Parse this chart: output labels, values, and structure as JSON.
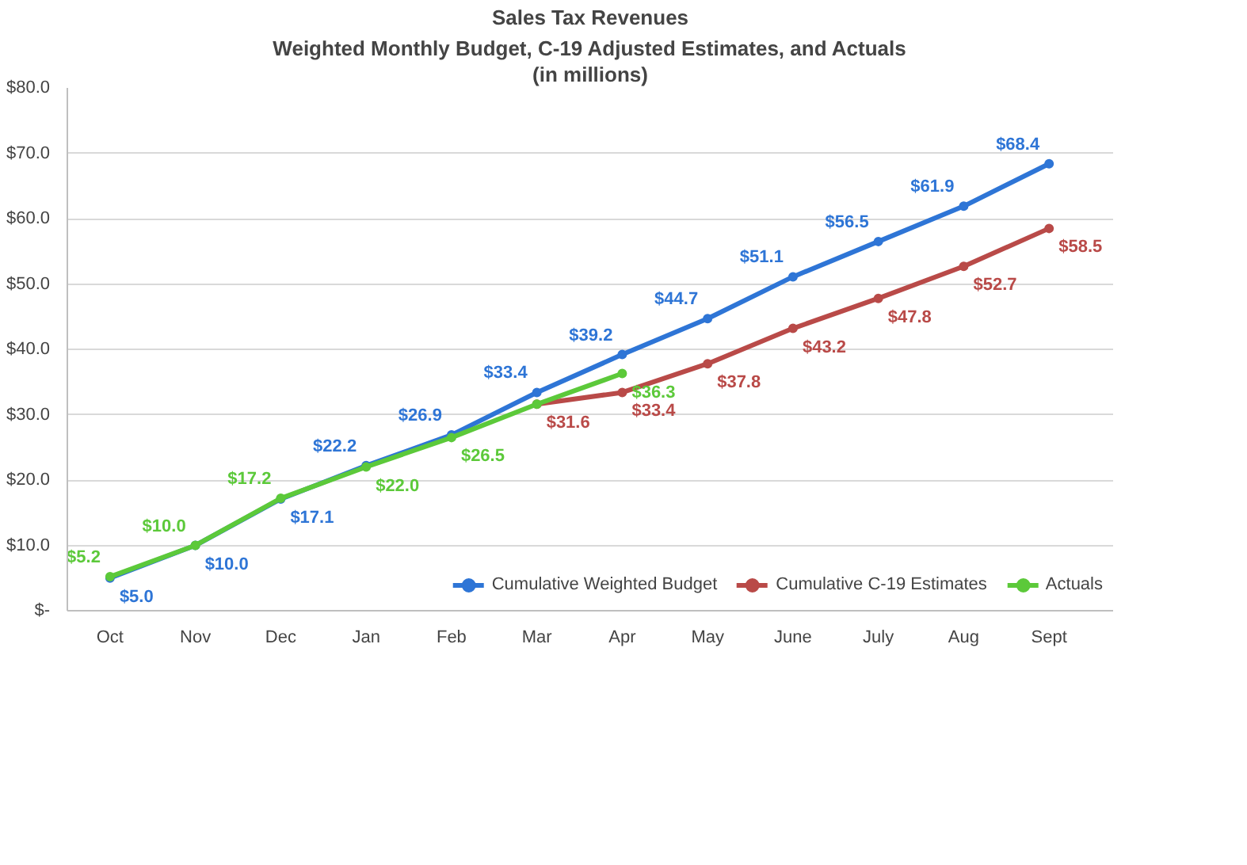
{
  "chart_data": {
    "type": "line",
    "title": "Sales Tax Revenues",
    "subtitle": "Weighted Monthly Budget, C-19 Adjusted Estimates, and Actuals\n(in millions)",
    "categories": [
      "Oct",
      "Nov",
      "Dec",
      "Jan",
      "Feb",
      "Mar",
      "Apr",
      "May",
      "June",
      "July",
      "Aug",
      "Sept"
    ],
    "series": [
      {
        "name": "Cumulative Weighted Budget",
        "color": "#2e75d6",
        "values": [
          5.0,
          10.0,
          17.1,
          22.2,
          26.9,
          33.4,
          39.2,
          44.7,
          51.1,
          56.5,
          61.9,
          68.4
        ],
        "value_labels": [
          "$5.0",
          "$10.0",
          "$17.1",
          "$22.2",
          "$26.9",
          "$33.4",
          "$39.2",
          "$44.7",
          "$51.1",
          "$56.5",
          "$61.9",
          "$68.4"
        ]
      },
      {
        "name": "Cumulative C-19 Estimates",
        "color": "#b94a48",
        "values": [
          null,
          null,
          null,
          null,
          null,
          31.6,
          33.4,
          37.8,
          43.2,
          47.8,
          52.7,
          58.5
        ],
        "value_labels": [
          null,
          null,
          null,
          null,
          null,
          "$31.6",
          "$33.4",
          "$37.8",
          "$43.2",
          "$47.8",
          "$52.7",
          "$58.5"
        ]
      },
      {
        "name": "Actuals",
        "color": "#5cc93a",
        "values": [
          5.2,
          10.0,
          17.2,
          22.0,
          26.5,
          31.6,
          36.3,
          null,
          null,
          null,
          null,
          null
        ],
        "value_labels": [
          "$5.2",
          "$10.0",
          "$17.2",
          "$22.0",
          "$26.5",
          null,
          "$36.3",
          null,
          null,
          null,
          null,
          null
        ]
      }
    ],
    "ylim": [
      0,
      80
    ],
    "yticks": [
      {
        "value": 0,
        "label": "$-"
      },
      {
        "value": 10,
        "label": "$10.0"
      },
      {
        "value": 20,
        "label": "$20.0"
      },
      {
        "value": 30,
        "label": "$30.0"
      },
      {
        "value": 40,
        "label": "$40.0"
      },
      {
        "value": 50,
        "label": "$50.0"
      },
      {
        "value": 60,
        "label": "$60.0"
      },
      {
        "value": 70,
        "label": "$70.0"
      },
      {
        "value": 80,
        "label": "$80.0"
      }
    ],
    "grid": "y",
    "legend": "bottom",
    "marker": "circle",
    "line_style": "solid"
  }
}
